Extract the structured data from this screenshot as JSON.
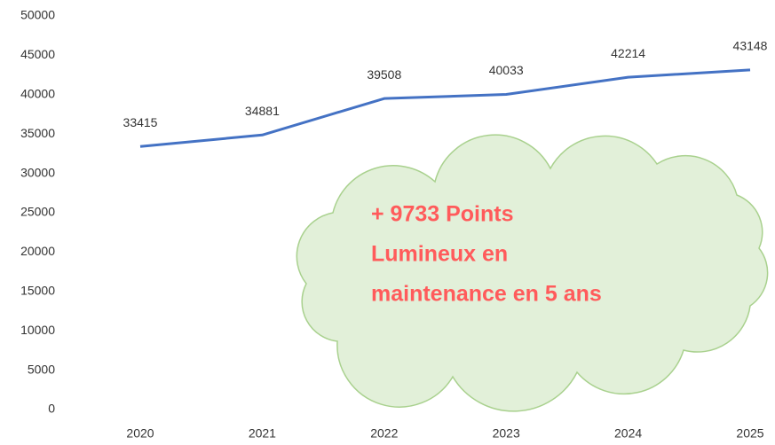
{
  "chart_data": {
    "type": "line",
    "categories": [
      "2020",
      "2021",
      "2022",
      "2023",
      "2024",
      "2025"
    ],
    "series": [
      {
        "color": "#4472c4",
        "values": [
          33415,
          34881,
          39508,
          40033,
          42214,
          43148
        ]
      }
    ],
    "ylim": [
      0,
      50000
    ],
    "yticks": [
      0,
      5000,
      10000,
      15000,
      20000,
      25000,
      30000,
      35000,
      40000,
      45000,
      50000
    ],
    "grid": false,
    "annotation": {
      "lines": [
        "+ 9733 Points",
        "Lumineux en",
        "maintenance en 5 ans"
      ],
      "color": "#ff5b5b"
    }
  }
}
